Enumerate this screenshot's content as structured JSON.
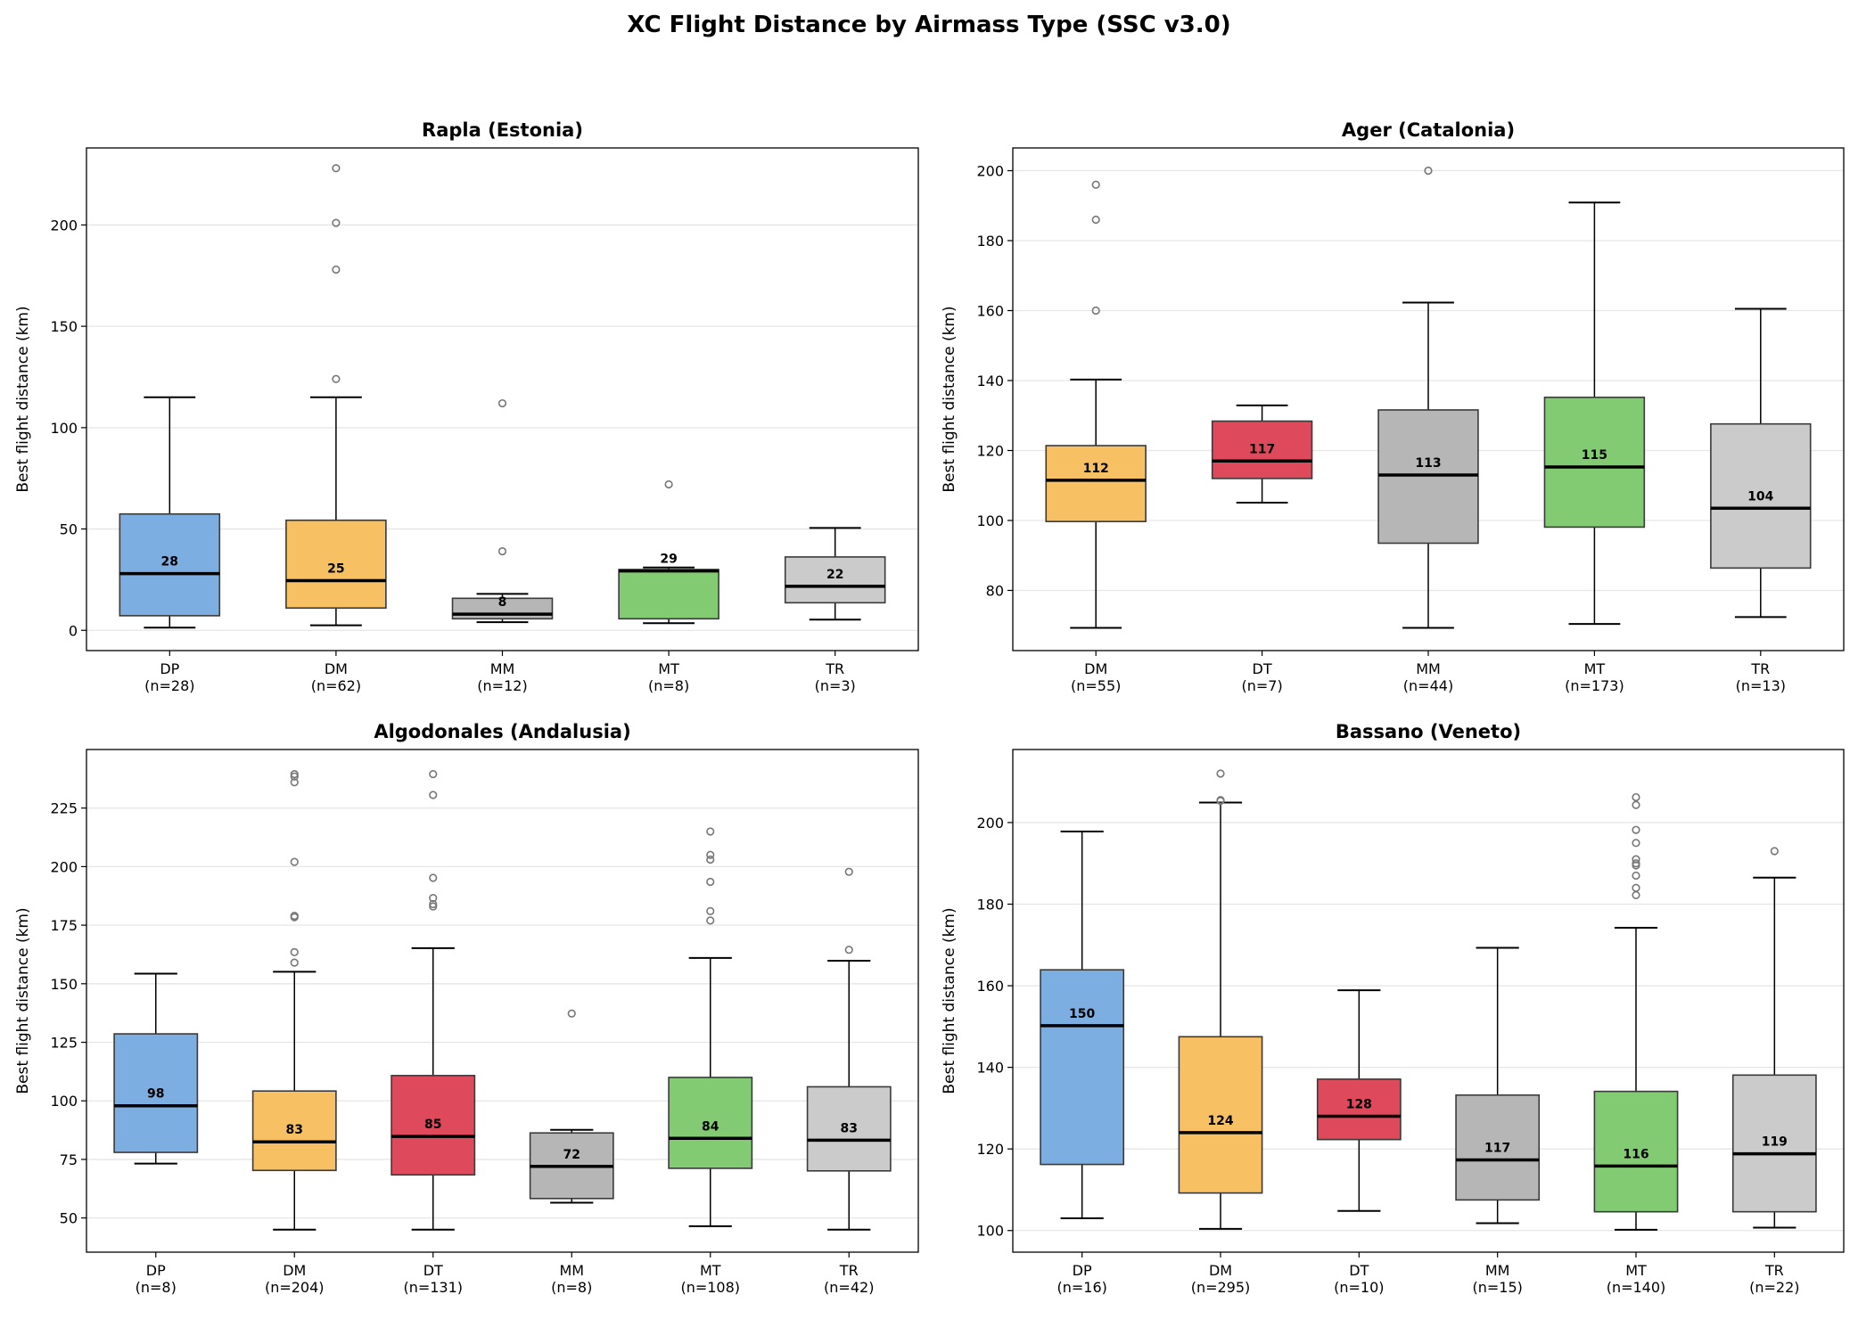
{
  "figure_title": "XC Flight Distance by Airmass Type (SSC v3.0)",
  "colors": {
    "DP": "#7daee2",
    "DM": "#f6c063",
    "DT": "#de4a5c",
    "MM": "#b6b6b6",
    "MT": "#82cb72",
    "TR": "#cbcbcb",
    "edge": "#3a3a3a",
    "flier": "#777777",
    "grid": "#e6e6e6"
  },
  "chart_data": [
    {
      "type": "box",
      "title": "Rapla (Estonia)",
      "ylabel": "Best flight distance (km)",
      "ylim": [
        -10,
        238
      ],
      "yticks": [
        0,
        50,
        100,
        150,
        200
      ],
      "grid": "y",
      "categories": [
        "DP",
        "DM",
        "MM",
        "MT",
        "TR"
      ],
      "counts": [
        "(n=28)",
        "(n=62)",
        "(n=12)",
        "(n=8)",
        "(n=3)"
      ],
      "boxes": [
        {
          "whislo": 1.3,
          "q1": 7.2,
          "med": 28,
          "q3": 57.4,
          "whishi": 115,
          "label": "28",
          "fliers": []
        },
        {
          "whislo": 2.5,
          "q1": 11,
          "med": 24.5,
          "q3": 54.3,
          "whishi": 115,
          "label": "25",
          "fliers": [
            124,
            178,
            201,
            228
          ]
        },
        {
          "whislo": 4,
          "q1": 5.7,
          "med": 8,
          "q3": 15.8,
          "whishi": 18,
          "label": "8",
          "fliers": [
            39,
            112
          ]
        },
        {
          "whislo": 3.5,
          "q1": 5.7,
          "med": 29.3,
          "q3": 30,
          "whishi": 31,
          "label": "29",
          "fliers": [
            72
          ]
        },
        {
          "whislo": 5.3,
          "q1": 13.6,
          "med": 21.7,
          "q3": 36.2,
          "whishi": 50.5,
          "label": "22",
          "fliers": []
        }
      ]
    },
    {
      "type": "box",
      "title": "Ager (Catalonia)",
      "ylabel": "Best flight distance (km)",
      "ylim": [
        62.8,
        206.5
      ],
      "yticks": [
        80,
        100,
        120,
        140,
        160,
        180,
        200
      ],
      "grid": "y",
      "categories": [
        "DM",
        "DT",
        "MM",
        "MT",
        "TR"
      ],
      "counts": [
        "(n=55)",
        "(n=7)",
        "(n=44)",
        "(n=173)",
        "(n=13)"
      ],
      "boxes": [
        {
          "whislo": 69.3,
          "q1": 99.7,
          "med": 111.5,
          "q3": 121.4,
          "whishi": 140.3,
          "label": "112",
          "fliers": [
            160,
            186,
            196
          ]
        },
        {
          "whislo": 105.1,
          "q1": 112,
          "med": 117,
          "q3": 128.4,
          "whishi": 132.9,
          "label": "117",
          "fliers": []
        },
        {
          "whislo": 69.3,
          "q1": 93.5,
          "med": 113,
          "q3": 131.6,
          "whishi": 162.3,
          "label": "113",
          "fliers": [
            200
          ]
        },
        {
          "whislo": 70.4,
          "q1": 98.1,
          "med": 115.3,
          "q3": 135.2,
          "whishi": 190.9,
          "label": "115",
          "fliers": []
        },
        {
          "whislo": 72.4,
          "q1": 86.4,
          "med": 103.5,
          "q3": 127.6,
          "whishi": 160.5,
          "label": "104",
          "fliers": []
        }
      ]
    },
    {
      "type": "box",
      "title": "Algodonales (Andalusia)",
      "ylabel": "Best flight distance (km)",
      "ylim": [
        35.4,
        250
      ],
      "yticks": [
        50,
        75,
        100,
        125,
        150,
        175,
        200,
        225
      ],
      "grid": "y",
      "categories": [
        "DP",
        "DM",
        "DT",
        "MM",
        "MT",
        "TR"
      ],
      "counts": [
        "(n=8)",
        "(n=204)",
        "(n=131)",
        "(n=8)",
        "(n=108)",
        "(n=42)"
      ],
      "boxes": [
        {
          "whislo": 73.2,
          "q1": 78,
          "med": 97.9,
          "q3": 128.6,
          "whishi": 154.3,
          "label": "98",
          "fliers": []
        },
        {
          "whislo": 45,
          "q1": 70.3,
          "med": 82.5,
          "q3": 104.2,
          "whishi": 155.1,
          "label": "83",
          "fliers": [
            159,
            163.5,
            178.4,
            179,
            202,
            236,
            238.5,
            239.5
          ]
        },
        {
          "whislo": 45,
          "q1": 68.4,
          "med": 84.8,
          "q3": 110.8,
          "whishi": 165.2,
          "label": "85",
          "fliers": [
            183,
            184,
            186.6,
            195.2,
            230.6,
            239.5
          ]
        },
        {
          "whislo": 56.5,
          "q1": 58.3,
          "med": 72,
          "q3": 86.3,
          "whishi": 87.6,
          "label": "72",
          "fliers": [
            137.3
          ]
        },
        {
          "whislo": 46.5,
          "q1": 71.2,
          "med": 84,
          "q3": 110,
          "whishi": 161,
          "label": "84",
          "fliers": [
            177,
            181,
            193.5,
            203,
            205,
            215
          ]
        },
        {
          "whislo": 45,
          "q1": 70.1,
          "med": 83.2,
          "q3": 106,
          "whishi": 159.8,
          "label": "83",
          "fliers": [
            164.5,
            197.8
          ]
        }
      ]
    },
    {
      "type": "box",
      "title": "Bassano (Veneto)",
      "ylabel": "Best flight distance (km)",
      "ylim": [
        94.7,
        217.9
      ],
      "yticks": [
        100,
        120,
        140,
        160,
        180,
        200
      ],
      "grid": "y",
      "categories": [
        "DP",
        "DM",
        "DT",
        "MM",
        "MT",
        "TR"
      ],
      "counts": [
        "(n=16)",
        "(n=295)",
        "(n=10)",
        "(n=15)",
        "(n=140)",
        "(n=22)"
      ],
      "boxes": [
        {
          "whislo": 103,
          "q1": 116.2,
          "med": 150.2,
          "q3": 163.9,
          "whishi": 197.8,
          "label": "150",
          "fliers": []
        },
        {
          "whislo": 100.4,
          "q1": 109.2,
          "med": 124,
          "q3": 147.5,
          "whishi": 204.9,
          "label": "124",
          "fliers": [
            205.3,
            205.5,
            212
          ]
        },
        {
          "whislo": 104.8,
          "q1": 122.3,
          "med": 128,
          "q3": 137.1,
          "whishi": 158.9,
          "label": "128",
          "fliers": []
        },
        {
          "whislo": 101.8,
          "q1": 107.5,
          "med": 117.3,
          "q3": 133.2,
          "whishi": 169.3,
          "label": "117",
          "fliers": []
        },
        {
          "whislo": 100.2,
          "q1": 104.6,
          "med": 115.8,
          "q3": 134.1,
          "whishi": 174.2,
          "label": "116",
          "fliers": [
            182.2,
            184,
            187,
            189.5,
            190,
            191,
            195,
            198.2,
            204.3,
            206.2
          ]
        },
        {
          "whislo": 100.7,
          "q1": 104.6,
          "med": 118.8,
          "q3": 138.1,
          "whishi": 186.5,
          "label": "119",
          "fliers": [
            193
          ]
        }
      ]
    }
  ]
}
